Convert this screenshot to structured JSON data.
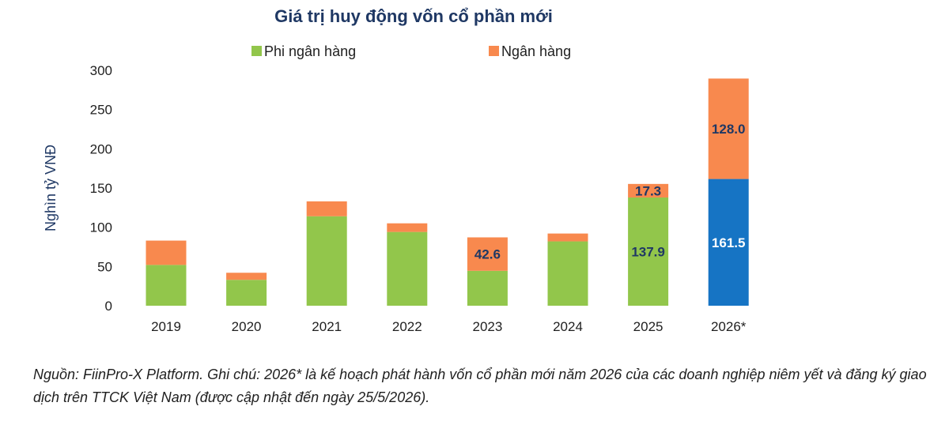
{
  "chart_data": {
    "type": "bar",
    "stacked": true,
    "title": "Giá trị huy động vốn cổ phần mới",
    "ylabel": "Nghìn tỷ VNĐ",
    "xlabel": "",
    "ylim": [
      0,
      300
    ],
    "yticks": [
      0,
      50,
      100,
      150,
      200,
      250,
      300
    ],
    "grid": false,
    "legend_position": "top",
    "categories": [
      "2019",
      "2020",
      "2021",
      "2022",
      "2023",
      "2024",
      "2025",
      "2026*"
    ],
    "series": [
      {
        "name": "Phi ngân hàng",
        "color": "#92c64b",
        "values": [
          52,
          33,
          114,
          94,
          44.5,
          82,
          137.9,
          161.5
        ],
        "value_labels": [
          "",
          "",
          "",
          "",
          "",
          "",
          "137.9",
          "161.5"
        ],
        "highlight": {
          "index": 7,
          "color": "#1674c4",
          "label_color": "#ffffff"
        },
        "label_color": "#1f3864"
      },
      {
        "name": "Ngân hàng",
        "color": "#f8894e",
        "values": [
          31,
          9,
          19,
          11,
          42.6,
          10,
          17.3,
          128.0
        ],
        "value_labels": [
          "",
          "",
          "",
          "",
          "42.6",
          "",
          "17.3",
          "128.0"
        ],
        "label_color": "#1f3864"
      }
    ]
  },
  "footnote": "Nguồn: FiinPro-X Platform. Ghi chú: 2026* là kế hoạch phát hành vốn cổ phần mới năm 2026 của các doanh nghiệp niêm yết và đăng ký giao dịch trên TTCK Việt Nam (được cập nhật đến ngày 25/5/2026)."
}
